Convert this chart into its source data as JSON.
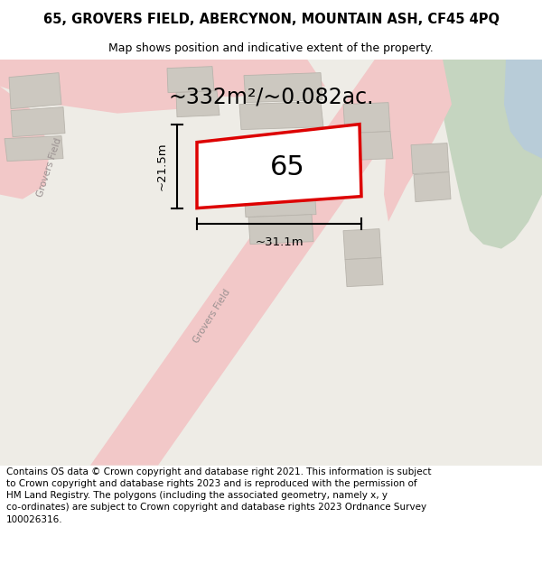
{
  "title": "65, GROVERS FIELD, ABERCYNON, MOUNTAIN ASH, CF45 4PQ",
  "subtitle": "Map shows position and indicative extent of the property.",
  "area_text": "~332m²/~0.082ac.",
  "width_label": "~31.1m",
  "height_label": "~21.5m",
  "property_number": "65",
  "footer": "Contains OS data © Crown copyright and database right 2021. This information is subject to Crown copyright and database rights 2023 and is reproduced with the permission of HM Land Registry. The polygons (including the associated geometry, namely x, y co-ordinates) are subject to Crown copyright and database rights 2023 Ordnance Survey 100026316.",
  "map_bg": "#eeece6",
  "road_color": "#f2c8c8",
  "road_edge_color": "#e8a8a8",
  "building_fill": "#ccc8c0",
  "building_outline": "#b8b4ac",
  "property_fill": "#ffffff",
  "property_color": "#dd0000",
  "property_lw": 2.5,
  "green_fill": "#c5d5c0",
  "blue_fill": "#b8ccd8",
  "title_fontsize": 10.5,
  "subtitle_fontsize": 9,
  "area_fontsize": 17,
  "label_fontsize": 9.5,
  "number_fontsize": 22,
  "footer_fontsize": 7.5,
  "street_label_color": "#999090",
  "street_label_fontsize": 7.5
}
